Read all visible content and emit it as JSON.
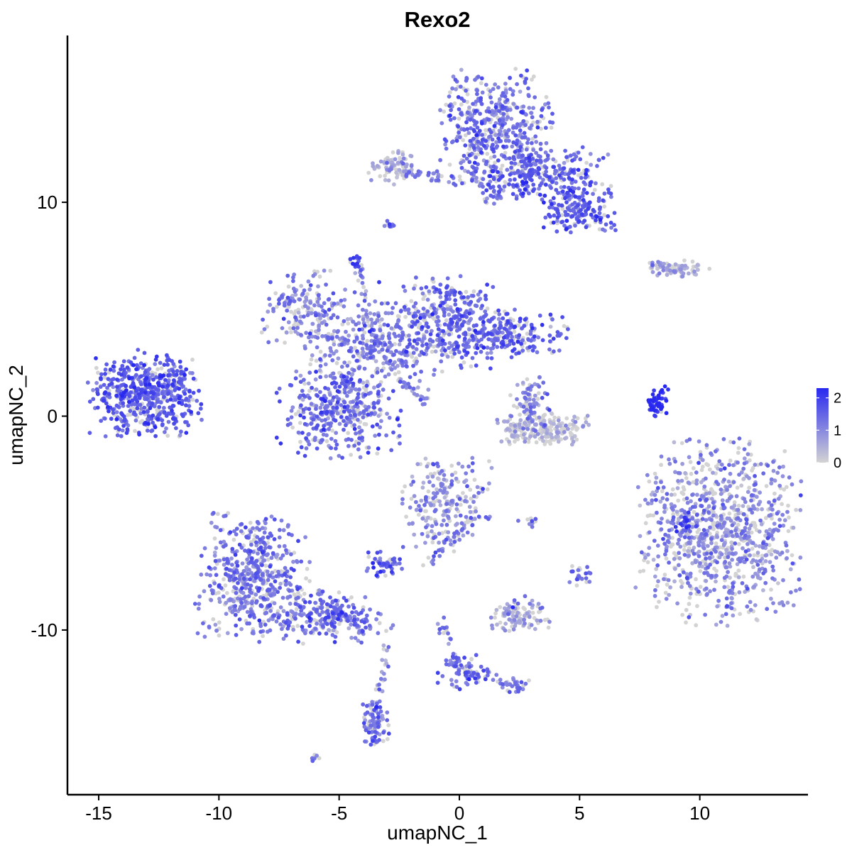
{
  "chart_data": {
    "type": "scatter",
    "title": "Rexo2",
    "xlabel": "umapNC_1",
    "ylabel": "umapNC_2",
    "xlim": [
      -16.3,
      14.5
    ],
    "ylim": [
      -17.7,
      17.8
    ],
    "x_ticks": [
      {
        "value": -15,
        "label": "-15"
      },
      {
        "value": -10,
        "label": "-10"
      },
      {
        "value": -5,
        "label": "-5"
      },
      {
        "value": 0,
        "label": "0"
      },
      {
        "value": 5,
        "label": "5"
      },
      {
        "value": 10,
        "label": "10"
      }
    ],
    "y_ticks": [
      {
        "value": -10,
        "label": "-10"
      },
      {
        "value": 0,
        "label": "0"
      },
      {
        "value": 10,
        "label": "10"
      }
    ],
    "grid": false,
    "legend": {
      "placement": "right",
      "type": "colorbar",
      "low_color": "#d3d3d3",
      "high_color": "#2828f0",
      "range": [
        0,
        2.3
      ],
      "ticks": [
        {
          "value": 0,
          "label": "0"
        },
        {
          "value": 1,
          "label": "1"
        },
        {
          "value": 2,
          "label": "2"
        }
      ]
    },
    "clusters": [
      {
        "id": "c1",
        "cx": -13.1,
        "cy": 1.0,
        "sx": 1.1,
        "sy": 0.9,
        "n": 520,
        "expr": 1.6
      },
      {
        "id": "c2",
        "cx": -11.9,
        "cy": 1.9,
        "sx": 0.5,
        "sy": 0.4,
        "n": 40,
        "expr": 1.4
      },
      {
        "id": "c3",
        "cx": -6.5,
        "cy": 5.1,
        "sx": 0.8,
        "sy": 0.8,
        "n": 160,
        "expr": 1.1
      },
      {
        "id": "c4",
        "cx": -3.7,
        "cy": 3.3,
        "sx": 1.5,
        "sy": 1.0,
        "n": 300,
        "expr": 1.1
      },
      {
        "id": "c5",
        "cx": -0.5,
        "cy": 4.4,
        "sx": 1.3,
        "sy": 1.0,
        "n": 380,
        "expr": 1.4
      },
      {
        "id": "c6",
        "cx": 2.2,
        "cy": 3.8,
        "sx": 1.1,
        "sy": 0.5,
        "n": 180,
        "expr": 1.5
      },
      {
        "id": "c7",
        "cx": -5.0,
        "cy": 0.2,
        "sx": 1.2,
        "sy": 1.0,
        "n": 380,
        "expr": 1.4
      },
      {
        "id": "c8",
        "cx": -4.3,
        "cy": 7.2,
        "sx": 0.15,
        "sy": 0.15,
        "n": 15,
        "expr": 1.9
      },
      {
        "id": "c9",
        "cx": 1.5,
        "cy": 13.5,
        "sx": 1.1,
        "sy": 1.3,
        "n": 480,
        "expr": 1.3
      },
      {
        "id": "c10",
        "cx": 3.5,
        "cy": 11.3,
        "sx": 1.3,
        "sy": 0.6,
        "n": 280,
        "expr": 1.5
      },
      {
        "id": "c11",
        "cx": 5.0,
        "cy": 9.6,
        "sx": 0.7,
        "sy": 0.5,
        "n": 150,
        "expr": 1.6
      },
      {
        "id": "c12",
        "cx": -2.7,
        "cy": 11.7,
        "sx": 0.5,
        "sy": 0.4,
        "n": 80,
        "expr": 0.6
      },
      {
        "id": "c13",
        "cx": 9.1,
        "cy": 6.9,
        "sx": 0.6,
        "sy": 0.2,
        "n": 60,
        "expr": 0.5
      },
      {
        "id": "c14",
        "cx": 3.5,
        "cy": -0.6,
        "sx": 0.9,
        "sy": 0.35,
        "n": 200,
        "expr": 0.4
      },
      {
        "id": "c15",
        "cx": 3.0,
        "cy": 0.6,
        "sx": 0.4,
        "sy": 0.6,
        "n": 60,
        "expr": 1.1
      },
      {
        "id": "c16",
        "cx": 10.8,
        "cy": -5.4,
        "sx": 1.6,
        "sy": 2.0,
        "n": 950,
        "expr": 0.95
      },
      {
        "id": "c17",
        "cx": 8.2,
        "cy": 0.6,
        "sx": 0.2,
        "sy": 0.3,
        "n": 40,
        "expr": 2.2
      },
      {
        "id": "c18",
        "cx": -0.6,
        "cy": -4.1,
        "sx": 0.9,
        "sy": 1.0,
        "n": 220,
        "expr": 1.0
      },
      {
        "id": "c19",
        "cx": -8.6,
        "cy": -7.6,
        "sx": 1.1,
        "sy": 1.4,
        "n": 560,
        "expr": 1.2
      },
      {
        "id": "c20",
        "cx": -5.4,
        "cy": -9.4,
        "sx": 1.0,
        "sy": 0.55,
        "n": 210,
        "expr": 1.3
      },
      {
        "id": "c21",
        "cx": -3.5,
        "cy": -14.5,
        "sx": 0.3,
        "sy": 0.5,
        "n": 90,
        "expr": 1.3
      },
      {
        "id": "c22",
        "cx": -3.2,
        "cy": -6.9,
        "sx": 0.4,
        "sy": 0.3,
        "n": 50,
        "expr": 1.5
      },
      {
        "id": "c23",
        "cx": 2.5,
        "cy": -9.4,
        "sx": 0.6,
        "sy": 0.3,
        "n": 100,
        "expr": 0.6
      },
      {
        "id": "c24",
        "cx": 0.2,
        "cy": -11.9,
        "sx": 0.5,
        "sy": 0.4,
        "n": 60,
        "expr": 1.5
      },
      {
        "id": "c25",
        "cx": 2.3,
        "cy": -12.6,
        "sx": 0.3,
        "sy": 0.2,
        "n": 25,
        "expr": 1.2
      },
      {
        "id": "c26",
        "cx": 5.0,
        "cy": -7.4,
        "sx": 0.2,
        "sy": 0.25,
        "n": 25,
        "expr": 1.4
      },
      {
        "id": "c27",
        "cx": 9.4,
        "cy": -5.0,
        "sx": 0.25,
        "sy": 0.3,
        "n": 20,
        "expr": 1.9
      },
      {
        "id": "c28",
        "cx": -6.0,
        "cy": -16.0,
        "sx": 0.1,
        "sy": 0.1,
        "n": 8,
        "expr": 1.5
      },
      {
        "id": "c29",
        "cx": -2.9,
        "cy": 8.9,
        "sx": 0.12,
        "sy": 0.12,
        "n": 10,
        "expr": 1.2
      }
    ],
    "filaments": [
      {
        "from": [
          -4.2,
          7.0
        ],
        "to": [
          -3.5,
          3.0
        ],
        "n": 45,
        "expr": 1.3
      },
      {
        "from": [
          -2.5,
          1.7
        ],
        "to": [
          -1.3,
          0.7
        ],
        "n": 30,
        "expr": 1.0
      },
      {
        "from": [
          -6.5,
          4.0
        ],
        "to": [
          -3.7,
          3.0
        ],
        "n": 30,
        "expr": 1.2
      },
      {
        "from": [
          -2.5,
          11.4
        ],
        "to": [
          1.2,
          10.9
        ],
        "n": 50,
        "expr": 1.2
      },
      {
        "from": [
          0.6,
          -4.8
        ],
        "to": [
          -1.4,
          -7.0
        ],
        "n": 35,
        "expr": 1.3
      },
      {
        "from": [
          -2.8,
          -9.8
        ],
        "to": [
          -3.5,
          -13.8
        ],
        "n": 30,
        "expr": 0.9
      },
      {
        "from": [
          -0.8,
          -9.5
        ],
        "to": [
          -0.1,
          -11.8
        ],
        "n": 25,
        "expr": 1.3
      },
      {
        "from": [
          0.4,
          -12.0
        ],
        "to": [
          2.3,
          -12.6
        ],
        "n": 25,
        "expr": 1.2
      },
      {
        "from": [
          8.0,
          0.0
        ],
        "to": [
          8.5,
          1.2
        ],
        "n": 15,
        "expr": 2.2
      },
      {
        "from": [
          2.8,
          1.8
        ],
        "to": [
          3.0,
          0.0
        ],
        "n": 20,
        "expr": 1.0
      },
      {
        "from": [
          7.8,
          7.1
        ],
        "to": [
          9.2,
          6.8
        ],
        "n": 25,
        "expr": 0.7
      },
      {
        "from": [
          1.2,
          10.0
        ],
        "to": [
          2.5,
          11.5
        ],
        "n": 20,
        "expr": 1.2
      },
      {
        "from": [
          -5.8,
          -8.2
        ],
        "to": [
          -3.9,
          -10.2
        ],
        "n": 40,
        "expr": 1.3
      },
      {
        "from": [
          2.0,
          -9.2
        ],
        "to": [
          3.0,
          -8.4
        ],
        "n": 15,
        "expr": 1.1
      },
      {
        "from": [
          2.5,
          -5.0
        ],
        "to": [
          3.2,
          -5.0
        ],
        "n": 10,
        "expr": 1.2
      }
    ]
  }
}
